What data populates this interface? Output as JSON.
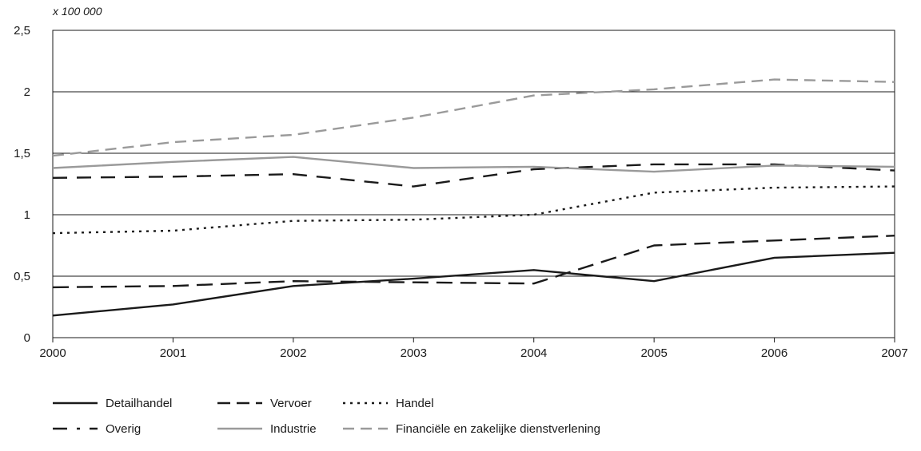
{
  "chart_data": {
    "type": "line",
    "unit_label": "x 100 000",
    "categories": [
      "2000",
      "2001",
      "2002",
      "2003",
      "2004",
      "2005",
      "2006",
      "2007"
    ],
    "y_tick_labels": [
      "0",
      "0,5",
      "1",
      "1,5",
      "2",
      "2,5"
    ],
    "ylim": [
      0,
      2.5
    ],
    "grid": true,
    "legend_position": "bottom",
    "series": [
      {
        "name": "Detailhandel",
        "style": "solid",
        "color": "#1a1a1a",
        "values": [
          0.18,
          0.27,
          0.42,
          0.48,
          0.55,
          0.46,
          0.65,
          0.69
        ]
      },
      {
        "name": "Vervoer",
        "style": "long-dash",
        "color": "#1a1a1a",
        "values": [
          0.41,
          0.42,
          0.46,
          0.45,
          0.44,
          0.75,
          0.79,
          0.83
        ]
      },
      {
        "name": "Handel",
        "style": "dotted",
        "color": "#1a1a1a",
        "values": [
          0.85,
          0.87,
          0.95,
          0.96,
          1.0,
          1.18,
          1.22,
          1.23
        ]
      },
      {
        "name": "Overig",
        "style": "dash",
        "color": "#1a1a1a",
        "values": [
          1.3,
          1.31,
          1.33,
          1.23,
          1.37,
          1.41,
          1.41,
          1.36
        ]
      },
      {
        "name": "Industrie",
        "style": "solid",
        "color": "#9a9a9a",
        "values": [
          1.38,
          1.43,
          1.47,
          1.38,
          1.39,
          1.35,
          1.4,
          1.39
        ]
      },
      {
        "name": "Financiële en zakelijke dienstverlening",
        "style": "dash",
        "color": "#9a9a9a",
        "values": [
          1.48,
          1.59,
          1.65,
          1.79,
          1.97,
          2.02,
          2.1,
          2.08
        ]
      }
    ]
  }
}
